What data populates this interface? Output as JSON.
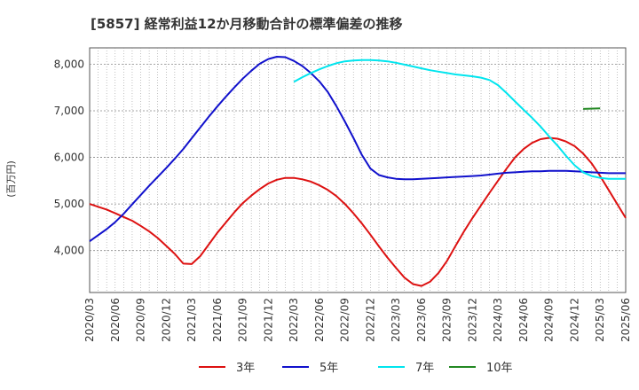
{
  "chart_data": {
    "type": "line",
    "title": "[5857]  経常利益12か月移動合計の標準偏差の推移",
    "ylabel": "(百万円)",
    "xlabel": "",
    "ylim": [
      3100,
      8350
    ],
    "yticks": [
      4000,
      5000,
      6000,
      7000,
      8000
    ],
    "ytick_labels": [
      "4,000",
      "5,000",
      "6,000",
      "7,000",
      "8,000"
    ],
    "xlim": [
      "2020/03",
      "2025/06"
    ],
    "xtick_labels": [
      "2020/03",
      "2020/06",
      "2020/09",
      "2020/12",
      "2021/03",
      "2021/06",
      "2021/09",
      "2021/12",
      "2022/03",
      "2022/06",
      "2022/09",
      "2022/12",
      "2023/03",
      "2023/06",
      "2023/09",
      "2023/12",
      "2024/03",
      "2024/06",
      "2024/09",
      "2024/12",
      "2025/03",
      "2025/06"
    ],
    "grid": true,
    "legend_position": "bottom",
    "series": [
      {
        "name": "3年",
        "color": "#dd1111",
        "points": [
          [
            "2020/03",
            5000
          ],
          [
            "2020/04",
            4940
          ],
          [
            "2020/05",
            4880
          ],
          [
            "2020/06",
            4800
          ],
          [
            "2020/07",
            4720
          ],
          [
            "2020/08",
            4640
          ],
          [
            "2020/09",
            4530
          ],
          [
            "2020/10",
            4410
          ],
          [
            "2020/11",
            4270
          ],
          [
            "2020/12",
            4100
          ],
          [
            "2021/01",
            3930
          ],
          [
            "2021/02",
            3720
          ],
          [
            "2021/03",
            3710
          ],
          [
            "2021/04",
            3880
          ],
          [
            "2021/05",
            4130
          ],
          [
            "2021/06",
            4380
          ],
          [
            "2021/07",
            4600
          ],
          [
            "2021/08",
            4820
          ],
          [
            "2021/09",
            5020
          ],
          [
            "2021/10",
            5180
          ],
          [
            "2021/11",
            5320
          ],
          [
            "2021/12",
            5440
          ],
          [
            "2022/01",
            5520
          ],
          [
            "2022/02",
            5560
          ],
          [
            "2022/03",
            5560
          ],
          [
            "2022/04",
            5530
          ],
          [
            "2022/05",
            5480
          ],
          [
            "2022/06",
            5400
          ],
          [
            "2022/07",
            5300
          ],
          [
            "2022/08",
            5170
          ],
          [
            "2022/09",
            5000
          ],
          [
            "2022/10",
            4800
          ],
          [
            "2022/11",
            4580
          ],
          [
            "2022/12",
            4340
          ],
          [
            "2023/01",
            4090
          ],
          [
            "2023/02",
            3850
          ],
          [
            "2023/03",
            3630
          ],
          [
            "2023/04",
            3420
          ],
          [
            "2023/05",
            3280
          ],
          [
            "2023/06",
            3240
          ],
          [
            "2023/07",
            3330
          ],
          [
            "2023/08",
            3520
          ],
          [
            "2023/09",
            3780
          ],
          [
            "2023/10",
            4100
          ],
          [
            "2023/11",
            4410
          ],
          [
            "2023/12",
            4700
          ],
          [
            "2024/01",
            4970
          ],
          [
            "2024/02",
            5240
          ],
          [
            "2024/03",
            5500
          ],
          [
            "2024/04",
            5760
          ],
          [
            "2024/05",
            6000
          ],
          [
            "2024/06",
            6180
          ],
          [
            "2024/07",
            6310
          ],
          [
            "2024/08",
            6390
          ],
          [
            "2024/09",
            6420
          ],
          [
            "2024/10",
            6400
          ],
          [
            "2024/11",
            6340
          ],
          [
            "2024/12",
            6240
          ],
          [
            "2025/01",
            6080
          ],
          [
            "2025/02",
            5870
          ],
          [
            "2025/03",
            5600
          ],
          [
            "2025/04",
            5300
          ],
          [
            "2025/05",
            5000
          ],
          [
            "2025/06",
            4700
          ]
        ]
      },
      {
        "name": "5年",
        "color": "#1111cc",
        "points": [
          [
            "2020/03",
            4200
          ],
          [
            "2020/04",
            4330
          ],
          [
            "2020/05",
            4460
          ],
          [
            "2020/06",
            4610
          ],
          [
            "2020/07",
            4790
          ],
          [
            "2020/08",
            4990
          ],
          [
            "2020/09",
            5190
          ],
          [
            "2020/10",
            5390
          ],
          [
            "2020/11",
            5580
          ],
          [
            "2020/12",
            5770
          ],
          [
            "2021/01",
            5970
          ],
          [
            "2021/02",
            6180
          ],
          [
            "2021/03",
            6410
          ],
          [
            "2021/04",
            6640
          ],
          [
            "2021/05",
            6870
          ],
          [
            "2021/06",
            7090
          ],
          [
            "2021/07",
            7300
          ],
          [
            "2021/08",
            7500
          ],
          [
            "2021/09",
            7690
          ],
          [
            "2021/10",
            7860
          ],
          [
            "2021/11",
            8010
          ],
          [
            "2021/12",
            8110
          ],
          [
            "2022/01",
            8160
          ],
          [
            "2022/02",
            8150
          ],
          [
            "2022/03",
            8070
          ],
          [
            "2022/04",
            7960
          ],
          [
            "2022/05",
            7810
          ],
          [
            "2022/06",
            7630
          ],
          [
            "2022/07",
            7400
          ],
          [
            "2022/08",
            7100
          ],
          [
            "2022/09",
            6770
          ],
          [
            "2022/10",
            6420
          ],
          [
            "2022/11",
            6050
          ],
          [
            "2022/12",
            5760
          ],
          [
            "2023/01",
            5620
          ],
          [
            "2023/02",
            5570
          ],
          [
            "2023/03",
            5540
          ],
          [
            "2023/04",
            5530
          ],
          [
            "2023/05",
            5530
          ],
          [
            "2023/06",
            5540
          ],
          [
            "2023/07",
            5550
          ],
          [
            "2023/08",
            5560
          ],
          [
            "2023/09",
            5570
          ],
          [
            "2023/10",
            5580
          ],
          [
            "2023/11",
            5590
          ],
          [
            "2023/12",
            5600
          ],
          [
            "2024/01",
            5610
          ],
          [
            "2024/02",
            5630
          ],
          [
            "2024/03",
            5650
          ],
          [
            "2024/04",
            5670
          ],
          [
            "2024/05",
            5680
          ],
          [
            "2024/06",
            5690
          ],
          [
            "2024/07",
            5700
          ],
          [
            "2024/08",
            5700
          ],
          [
            "2024/09",
            5710
          ],
          [
            "2024/10",
            5710
          ],
          [
            "2024/11",
            5710
          ],
          [
            "2024/12",
            5700
          ],
          [
            "2025/01",
            5690
          ],
          [
            "2025/02",
            5680
          ],
          [
            "2025/03",
            5670
          ],
          [
            "2025/04",
            5660
          ],
          [
            "2025/05",
            5660
          ],
          [
            "2025/06",
            5660
          ]
        ]
      },
      {
        "name": "7年",
        "color": "#00e5ee",
        "points": [
          [
            "2022/03",
            7620
          ],
          [
            "2022/04",
            7720
          ],
          [
            "2022/05",
            7810
          ],
          [
            "2022/06",
            7890
          ],
          [
            "2022/07",
            7960
          ],
          [
            "2022/08",
            8020
          ],
          [
            "2022/09",
            8060
          ],
          [
            "2022/10",
            8080
          ],
          [
            "2022/11",
            8090
          ],
          [
            "2022/12",
            8090
          ],
          [
            "2023/01",
            8080
          ],
          [
            "2023/02",
            8060
          ],
          [
            "2023/03",
            8030
          ],
          [
            "2023/04",
            7990
          ],
          [
            "2023/05",
            7950
          ],
          [
            "2023/06",
            7910
          ],
          [
            "2023/07",
            7870
          ],
          [
            "2023/08",
            7840
          ],
          [
            "2023/09",
            7810
          ],
          [
            "2023/10",
            7780
          ],
          [
            "2023/11",
            7760
          ],
          [
            "2023/12",
            7740
          ],
          [
            "2024/01",
            7710
          ],
          [
            "2024/02",
            7660
          ],
          [
            "2024/03",
            7550
          ],
          [
            "2024/04",
            7380
          ],
          [
            "2024/05",
            7200
          ],
          [
            "2024/06",
            7020
          ],
          [
            "2024/07",
            6850
          ],
          [
            "2024/08",
            6660
          ],
          [
            "2024/09",
            6450
          ],
          [
            "2024/10",
            6250
          ],
          [
            "2024/11",
            6030
          ],
          [
            "2024/12",
            5830
          ],
          [
            "2025/01",
            5680
          ],
          [
            "2025/02",
            5600
          ],
          [
            "2025/03",
            5560
          ],
          [
            "2025/04",
            5540
          ],
          [
            "2025/05",
            5540
          ],
          [
            "2025/06",
            5540
          ]
        ]
      },
      {
        "name": "10年",
        "color": "#228822",
        "points": [
          [
            "2025/01",
            7040
          ],
          [
            "2025/03",
            7050
          ]
        ]
      }
    ]
  }
}
